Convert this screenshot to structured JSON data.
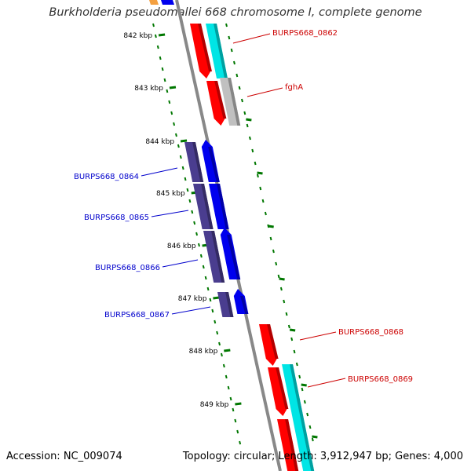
{
  "title": "Burkholderia pseudomallei 668 chromosome I, complete genome",
  "footer": {
    "accession": "Accession: NC_009074",
    "summary": "Topology: circular; Length: 3,912,947 bp; Genes: 4,000"
  },
  "colors": {
    "forward_cds": "#ff0000",
    "reverse_cds": "#0000ee",
    "forward_feature": "#00e5e5",
    "forward_other": "#c0c0c0",
    "reverse_feature": "#4a3d8f",
    "backbone": "#888888",
    "tick": "#007700",
    "forward_label": "#cc0000",
    "reverse_label": "#0000cc"
  },
  "ticks": [
    {
      "label": "842 kbp"
    },
    {
      "label": "843 kbp"
    },
    {
      "label": "844 kbp"
    },
    {
      "label": "845 kbp"
    },
    {
      "label": "846 kbp"
    },
    {
      "label": "847 kbp"
    },
    {
      "label": "848 kbp"
    },
    {
      "label": "849 kbp"
    }
  ],
  "genes": [
    {
      "label": "BURPS668_0862",
      "strand": "forward"
    },
    {
      "label": "fghA",
      "strand": "forward"
    },
    {
      "label": "BURPS668_0864",
      "strand": "reverse"
    },
    {
      "label": "BURPS668_0865",
      "strand": "reverse"
    },
    {
      "label": "BURPS668_0866",
      "strand": "reverse"
    },
    {
      "label": "BURPS668_0867",
      "strand": "reverse"
    },
    {
      "label": "BURPS668_0868",
      "strand": "forward"
    },
    {
      "label": "BURPS668_0869",
      "strand": "forward"
    }
  ]
}
